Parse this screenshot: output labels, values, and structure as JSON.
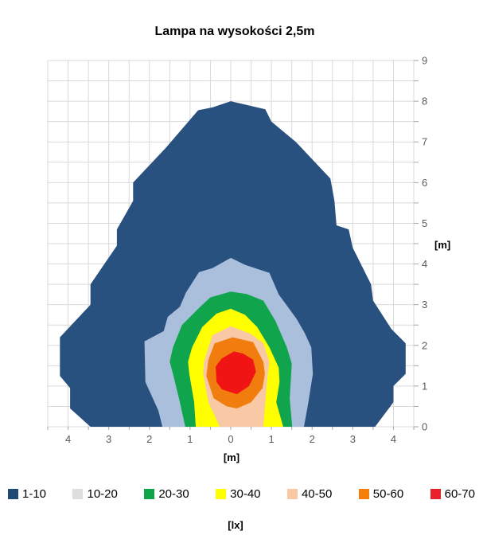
{
  "chart_data": {
    "type": "contour",
    "title": "Lampa na wysokości 2,5m",
    "xlabel": "[m]",
    "ylabel": "[m]",
    "unit_label": "[lx]",
    "x_domain": [
      -4.5,
      4.5
    ],
    "y_domain": [
      0,
      9
    ],
    "grid_step": 0.5,
    "grid_on": true,
    "legend_position": "bottom",
    "grid_color": "#D9D9D9",
    "tick_color": "#A6A6A6",
    "tick_label_color": "#595959",
    "x_ticks": [
      {
        "value": -4,
        "label": "4"
      },
      {
        "value": -3,
        "label": "3"
      },
      {
        "value": -2,
        "label": "2"
      },
      {
        "value": -1,
        "label": "1"
      },
      {
        "value": 0,
        "label": "0"
      },
      {
        "value": 1,
        "label": "1"
      },
      {
        "value": 2,
        "label": "2"
      },
      {
        "value": 3,
        "label": "3"
      },
      {
        "value": 4,
        "label": "4"
      }
    ],
    "y_ticks": [
      {
        "value": 0,
        "label": "0"
      },
      {
        "value": 1,
        "label": "1"
      },
      {
        "value": 2,
        "label": "2"
      },
      {
        "value": 3,
        "label": "3"
      },
      {
        "value": 4,
        "label": "4"
      },
      {
        "value": 5,
        "label": "5"
      },
      {
        "value": 6,
        "label": "6"
      },
      {
        "value": 7,
        "label": "7"
      },
      {
        "value": 8,
        "label": "8"
      },
      {
        "value": 9,
        "label": "9"
      }
    ],
    "bands": [
      {
        "label": "1-10",
        "legend_color": "#1F4A73",
        "fill_color": "#29517F",
        "points": [
          [
            -3.45,
            0
          ],
          [
            -3.95,
            0.45
          ],
          [
            -3.95,
            0.95
          ],
          [
            -4.2,
            1.25
          ],
          [
            -4.2,
            2.2
          ],
          [
            -3.45,
            3.0
          ],
          [
            -3.45,
            3.5
          ],
          [
            -2.8,
            4.45
          ],
          [
            -2.8,
            4.85
          ],
          [
            -2.4,
            5.55
          ],
          [
            -2.4,
            6.0
          ],
          [
            -1.6,
            6.85
          ],
          [
            -0.8,
            7.78
          ],
          [
            -0.44,
            7.85
          ],
          [
            0,
            8.0
          ],
          [
            0.85,
            7.8
          ],
          [
            1.0,
            7.5
          ],
          [
            1.6,
            7.0
          ],
          [
            2.45,
            6.1
          ],
          [
            2.55,
            5.55
          ],
          [
            2.6,
            4.95
          ],
          [
            2.9,
            4.85
          ],
          [
            3.0,
            4.4
          ],
          [
            3.45,
            3.5
          ],
          [
            3.5,
            3.1
          ],
          [
            3.95,
            2.4
          ],
          [
            4.3,
            2.05
          ],
          [
            4.3,
            1.3
          ],
          [
            4.0,
            1.0
          ],
          [
            4.0,
            0.6
          ],
          [
            3.55,
            0
          ]
        ]
      },
      {
        "label": "10-20",
        "legend_color": "#DEDEDE",
        "fill_color": "#A9BFDC",
        "points": [
          [
            -1.68,
            0
          ],
          [
            -1.78,
            0.4
          ],
          [
            -2.1,
            1.1
          ],
          [
            -2.12,
            2.1
          ],
          [
            -1.65,
            2.35
          ],
          [
            -1.55,
            2.7
          ],
          [
            -1.25,
            2.95
          ],
          [
            -1.1,
            3.3
          ],
          [
            -0.78,
            3.8
          ],
          [
            -0.45,
            3.9
          ],
          [
            0,
            4.15
          ],
          [
            0.35,
            3.98
          ],
          [
            0.95,
            3.78
          ],
          [
            1.18,
            3.25
          ],
          [
            1.4,
            2.95
          ],
          [
            1.62,
            2.65
          ],
          [
            1.82,
            2.3
          ],
          [
            1.98,
            1.95
          ],
          [
            2.02,
            1.3
          ],
          [
            1.9,
            0.55
          ],
          [
            1.8,
            0
          ]
        ]
      },
      {
        "label": "20-30",
        "legend_color": "#0FA44A",
        "fill_color": "#10A44C",
        "points": [
          [
            -1.12,
            0
          ],
          [
            -1.25,
            0.6
          ],
          [
            -1.42,
            1.3
          ],
          [
            -1.5,
            1.6
          ],
          [
            -1.42,
            1.95
          ],
          [
            -1.2,
            2.5
          ],
          [
            -0.75,
            2.95
          ],
          [
            -0.5,
            3.18
          ],
          [
            0,
            3.32
          ],
          [
            0.4,
            3.26
          ],
          [
            0.8,
            3.1
          ],
          [
            1.1,
            2.6
          ],
          [
            1.38,
            1.95
          ],
          [
            1.5,
            1.55
          ],
          [
            1.45,
            0.7
          ],
          [
            1.51,
            0
          ]
        ]
      },
      {
        "label": "30-40",
        "legend_color": "#FFFF00",
        "fill_color": "#FFFF00",
        "points": [
          [
            -0.86,
            0
          ],
          [
            -0.9,
            0.6
          ],
          [
            -1.02,
            1.3
          ],
          [
            -1.05,
            1.6
          ],
          [
            -0.95,
            1.95
          ],
          [
            -0.7,
            2.45
          ],
          [
            -0.35,
            2.78
          ],
          [
            0,
            2.9
          ],
          [
            0.35,
            2.75
          ],
          [
            0.65,
            2.45
          ],
          [
            0.95,
            1.95
          ],
          [
            1.18,
            1.45
          ],
          [
            1.2,
            1.1
          ],
          [
            1.12,
            0.6
          ],
          [
            1.29,
            0
          ]
        ]
      },
      {
        "label": "40-50",
        "legend_color": "#F8C9A4",
        "fill_color": "#F8C9A4",
        "points": [
          [
            -0.27,
            0
          ],
          [
            -0.55,
            0.6
          ],
          [
            -0.68,
            1.3
          ],
          [
            -0.66,
            1.6
          ],
          [
            -0.55,
            1.95
          ],
          [
            -0.45,
            2.25
          ],
          [
            0,
            2.47
          ],
          [
            0.5,
            2.28
          ],
          [
            0.8,
            2.05
          ],
          [
            0.95,
            1.6
          ],
          [
            0.9,
            1.2
          ],
          [
            0.85,
            0.6
          ],
          [
            0.8,
            0
          ]
        ]
      },
      {
        "label": "50-60",
        "legend_color": "#F57D0C",
        "fill_color": "#F07D0E",
        "points": [
          [
            0.05,
            2.2
          ],
          [
            -0.4,
            2.05
          ],
          [
            -0.55,
            1.65
          ],
          [
            -0.6,
            1.25
          ],
          [
            -0.42,
            0.7
          ],
          [
            -0.1,
            0.5
          ],
          [
            0.15,
            0.45
          ],
          [
            0.5,
            0.6
          ],
          [
            0.78,
            0.95
          ],
          [
            0.84,
            1.3
          ],
          [
            0.8,
            1.6
          ],
          [
            0.55,
            2.08
          ]
        ]
      },
      {
        "label": "60-70",
        "legend_color": "#E8212D",
        "fill_color": "#F01414",
        "points": [
          [
            0.08,
            1.85
          ],
          [
            -0.22,
            1.68
          ],
          [
            -0.37,
            1.48
          ],
          [
            -0.35,
            1.1
          ],
          [
            -0.22,
            0.92
          ],
          [
            0.15,
            0.8
          ],
          [
            0.45,
            1.0
          ],
          [
            0.62,
            1.35
          ],
          [
            0.55,
            1.65
          ],
          [
            0.3,
            1.8
          ]
        ]
      }
    ]
  }
}
